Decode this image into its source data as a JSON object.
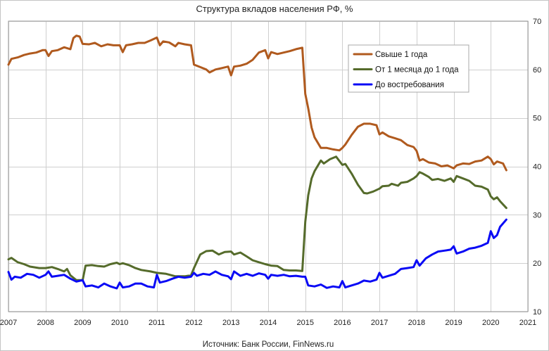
{
  "chart_data": {
    "type": "line",
    "title": "Структура вкладов населения РФ, %",
    "xlabel": "",
    "ylabel": "",
    "xlim": [
      2007,
      2021
    ],
    "ylim": [
      10,
      70
    ],
    "x_ticks": [
      "2007",
      "2008",
      "2009",
      "2010",
      "2011",
      "2012",
      "2013",
      "2014",
      "2015",
      "2016",
      "2017",
      "2018",
      "2019",
      "2020",
      "2021"
    ],
    "y_ticks": [
      "10",
      "20",
      "30",
      "40",
      "50",
      "60",
      "70"
    ],
    "y_axis_side": "right",
    "grid": true,
    "legend_position": "upper right",
    "series": [
      {
        "name": "Свыше 1 года",
        "color": "#b05a1e",
        "points": [
          [
            2007.0,
            61.0
          ],
          [
            2007.08,
            62.2
          ],
          [
            2007.25,
            62.5
          ],
          [
            2007.42,
            63.0
          ],
          [
            2007.58,
            63.3
          ],
          [
            2007.75,
            63.5
          ],
          [
            2007.92,
            64.0
          ],
          [
            2008.0,
            64.0
          ],
          [
            2008.08,
            62.8
          ],
          [
            2008.17,
            63.8
          ],
          [
            2008.33,
            64.0
          ],
          [
            2008.5,
            64.6
          ],
          [
            2008.67,
            64.2
          ],
          [
            2008.75,
            66.5
          ],
          [
            2008.83,
            67.0
          ],
          [
            2008.92,
            66.8
          ],
          [
            2009.0,
            65.3
          ],
          [
            2009.17,
            65.2
          ],
          [
            2009.33,
            65.5
          ],
          [
            2009.5,
            64.8
          ],
          [
            2009.67,
            65.2
          ],
          [
            2009.83,
            65.0
          ],
          [
            2010.0,
            65.0
          ],
          [
            2010.08,
            63.6
          ],
          [
            2010.17,
            65.0
          ],
          [
            2010.33,
            65.2
          ],
          [
            2010.5,
            65.5
          ],
          [
            2010.67,
            65.5
          ],
          [
            2010.83,
            66.0
          ],
          [
            2011.0,
            66.6
          ],
          [
            2011.08,
            65.0
          ],
          [
            2011.17,
            65.8
          ],
          [
            2011.33,
            65.6
          ],
          [
            2011.5,
            64.8
          ],
          [
            2011.58,
            65.5
          ],
          [
            2011.75,
            65.2
          ],
          [
            2011.92,
            65.0
          ],
          [
            2012.0,
            61.0
          ],
          [
            2012.17,
            60.5
          ],
          [
            2012.33,
            60.0
          ],
          [
            2012.42,
            59.4
          ],
          [
            2012.58,
            60.0
          ],
          [
            2012.75,
            60.3
          ],
          [
            2012.92,
            60.6
          ],
          [
            2013.0,
            58.8
          ],
          [
            2013.08,
            60.6
          ],
          [
            2013.25,
            60.8
          ],
          [
            2013.42,
            61.2
          ],
          [
            2013.58,
            62.0
          ],
          [
            2013.75,
            63.5
          ],
          [
            2013.92,
            64.0
          ],
          [
            2014.0,
            62.3
          ],
          [
            2014.08,
            63.6
          ],
          [
            2014.25,
            63.2
          ],
          [
            2014.42,
            63.5
          ],
          [
            2014.58,
            63.8
          ],
          [
            2014.75,
            64.2
          ],
          [
            2014.92,
            64.5
          ],
          [
            2015.0,
            55.0
          ],
          [
            2015.08,
            52.0
          ],
          [
            2015.17,
            48.0
          ],
          [
            2015.25,
            46.0
          ],
          [
            2015.42,
            43.8
          ],
          [
            2015.58,
            43.8
          ],
          [
            2015.75,
            43.5
          ],
          [
            2015.92,
            43.3
          ],
          [
            2016.0,
            43.8
          ],
          [
            2016.08,
            44.5
          ],
          [
            2016.25,
            46.5
          ],
          [
            2016.42,
            48.2
          ],
          [
            2016.58,
            48.8
          ],
          [
            2016.75,
            48.8
          ],
          [
            2016.92,
            48.5
          ],
          [
            2017.0,
            46.6
          ],
          [
            2017.08,
            47.0
          ],
          [
            2017.25,
            46.2
          ],
          [
            2017.42,
            45.8
          ],
          [
            2017.58,
            45.4
          ],
          [
            2017.75,
            44.4
          ],
          [
            2017.92,
            44.0
          ],
          [
            2018.0,
            43.2
          ],
          [
            2018.08,
            41.2
          ],
          [
            2018.17,
            41.5
          ],
          [
            2018.33,
            40.8
          ],
          [
            2018.5,
            40.6
          ],
          [
            2018.67,
            40.0
          ],
          [
            2018.83,
            40.2
          ],
          [
            2019.0,
            39.6
          ],
          [
            2019.08,
            40.2
          ],
          [
            2019.25,
            40.6
          ],
          [
            2019.42,
            40.5
          ],
          [
            2019.58,
            41.0
          ],
          [
            2019.75,
            41.2
          ],
          [
            2019.92,
            42.0
          ],
          [
            2020.0,
            41.5
          ],
          [
            2020.08,
            40.4
          ],
          [
            2020.17,
            41.0
          ],
          [
            2020.25,
            40.8
          ],
          [
            2020.33,
            40.6
          ],
          [
            2020.42,
            39.2
          ]
        ]
      },
      {
        "name": "От 1 месяца до 1 года",
        "color": "#556b2b",
        "points": [
          [
            2007.0,
            20.8
          ],
          [
            2007.08,
            21.1
          ],
          [
            2007.25,
            20.2
          ],
          [
            2007.42,
            19.8
          ],
          [
            2007.58,
            19.3
          ],
          [
            2007.83,
            19.0
          ],
          [
            2008.0,
            19.0
          ],
          [
            2008.17,
            19.2
          ],
          [
            2008.33,
            18.8
          ],
          [
            2008.5,
            18.3
          ],
          [
            2008.58,
            18.8
          ],
          [
            2008.67,
            17.5
          ],
          [
            2008.83,
            16.5
          ],
          [
            2009.0,
            16.5
          ],
          [
            2009.08,
            19.5
          ],
          [
            2009.25,
            19.6
          ],
          [
            2009.42,
            19.4
          ],
          [
            2009.58,
            19.3
          ],
          [
            2009.75,
            19.8
          ],
          [
            2009.92,
            20.1
          ],
          [
            2010.0,
            19.8
          ],
          [
            2010.08,
            20.0
          ],
          [
            2010.25,
            19.6
          ],
          [
            2010.42,
            19.0
          ],
          [
            2010.58,
            18.6
          ],
          [
            2010.83,
            18.3
          ],
          [
            2011.0,
            18.0
          ],
          [
            2011.25,
            17.8
          ],
          [
            2011.5,
            17.3
          ],
          [
            2011.75,
            17.3
          ],
          [
            2011.92,
            17.5
          ],
          [
            2012.0,
            19.0
          ],
          [
            2012.17,
            21.8
          ],
          [
            2012.33,
            22.5
          ],
          [
            2012.5,
            22.6
          ],
          [
            2012.67,
            21.8
          ],
          [
            2012.83,
            22.3
          ],
          [
            2013.0,
            22.4
          ],
          [
            2013.08,
            21.8
          ],
          [
            2013.25,
            22.2
          ],
          [
            2013.42,
            21.4
          ],
          [
            2013.58,
            20.6
          ],
          [
            2013.75,
            20.2
          ],
          [
            2013.92,
            19.8
          ],
          [
            2014.08,
            19.5
          ],
          [
            2014.25,
            19.4
          ],
          [
            2014.42,
            18.6
          ],
          [
            2014.58,
            18.5
          ],
          [
            2014.75,
            18.5
          ],
          [
            2014.92,
            18.4
          ],
          [
            2015.0,
            28.5
          ],
          [
            2015.08,
            34.0
          ],
          [
            2015.17,
            37.5
          ],
          [
            2015.25,
            39.0
          ],
          [
            2015.42,
            41.2
          ],
          [
            2015.5,
            40.6
          ],
          [
            2015.67,
            41.5
          ],
          [
            2015.83,
            42.0
          ],
          [
            2016.0,
            40.3
          ],
          [
            2016.08,
            40.5
          ],
          [
            2016.25,
            38.5
          ],
          [
            2016.42,
            36.2
          ],
          [
            2016.58,
            34.5
          ],
          [
            2016.67,
            34.4
          ],
          [
            2016.83,
            34.8
          ],
          [
            2017.0,
            35.4
          ],
          [
            2017.08,
            35.9
          ],
          [
            2017.25,
            36.0
          ],
          [
            2017.33,
            36.4
          ],
          [
            2017.5,
            36.0
          ],
          [
            2017.58,
            36.6
          ],
          [
            2017.75,
            36.8
          ],
          [
            2017.92,
            37.5
          ],
          [
            2018.0,
            38.0
          ],
          [
            2018.08,
            38.8
          ],
          [
            2018.17,
            38.5
          ],
          [
            2018.33,
            37.8
          ],
          [
            2018.42,
            37.2
          ],
          [
            2018.58,
            37.4
          ],
          [
            2018.75,
            37.0
          ],
          [
            2018.92,
            37.5
          ],
          [
            2019.0,
            36.8
          ],
          [
            2019.08,
            38.0
          ],
          [
            2019.25,
            37.5
          ],
          [
            2019.42,
            37.0
          ],
          [
            2019.58,
            36.0
          ],
          [
            2019.75,
            35.8
          ],
          [
            2019.92,
            35.2
          ],
          [
            2020.0,
            33.8
          ],
          [
            2020.08,
            33.2
          ],
          [
            2020.17,
            33.6
          ],
          [
            2020.25,
            32.8
          ],
          [
            2020.42,
            31.4
          ]
        ]
      },
      {
        "name": "До востребования",
        "color": "#0a0af5",
        "points": [
          [
            2007.0,
            18.2
          ],
          [
            2007.08,
            16.6
          ],
          [
            2007.17,
            17.2
          ],
          [
            2007.33,
            17.0
          ],
          [
            2007.5,
            17.8
          ],
          [
            2007.67,
            17.6
          ],
          [
            2007.83,
            17.0
          ],
          [
            2008.0,
            17.6
          ],
          [
            2008.08,
            18.3
          ],
          [
            2008.17,
            17.2
          ],
          [
            2008.33,
            17.4
          ],
          [
            2008.5,
            17.6
          ],
          [
            2008.67,
            16.8
          ],
          [
            2008.83,
            16.2
          ],
          [
            2009.0,
            16.5
          ],
          [
            2009.08,
            15.2
          ],
          [
            2009.25,
            15.4
          ],
          [
            2009.42,
            15.0
          ],
          [
            2009.58,
            15.8
          ],
          [
            2009.75,
            15.2
          ],
          [
            2009.92,
            14.8
          ],
          [
            2010.0,
            16.0
          ],
          [
            2010.08,
            15.0
          ],
          [
            2010.25,
            15.2
          ],
          [
            2010.42,
            15.8
          ],
          [
            2010.58,
            15.8
          ],
          [
            2010.75,
            15.2
          ],
          [
            2010.92,
            15.0
          ],
          [
            2011.0,
            17.6
          ],
          [
            2011.08,
            16.0
          ],
          [
            2011.25,
            16.3
          ],
          [
            2011.42,
            16.8
          ],
          [
            2011.58,
            17.2
          ],
          [
            2011.75,
            17.0
          ],
          [
            2011.92,
            17.2
          ],
          [
            2012.0,
            18.0
          ],
          [
            2012.08,
            17.4
          ],
          [
            2012.25,
            17.8
          ],
          [
            2012.42,
            17.6
          ],
          [
            2012.58,
            18.3
          ],
          [
            2012.75,
            17.6
          ],
          [
            2012.92,
            17.3
          ],
          [
            2013.0,
            16.7
          ],
          [
            2013.08,
            18.3
          ],
          [
            2013.25,
            17.4
          ],
          [
            2013.42,
            17.8
          ],
          [
            2013.58,
            17.4
          ],
          [
            2013.75,
            17.9
          ],
          [
            2013.92,
            17.6
          ],
          [
            2014.0,
            16.8
          ],
          [
            2014.08,
            17.6
          ],
          [
            2014.25,
            17.4
          ],
          [
            2014.42,
            17.6
          ],
          [
            2014.58,
            17.3
          ],
          [
            2014.75,
            17.4
          ],
          [
            2014.92,
            17.2
          ],
          [
            2015.0,
            17.2
          ],
          [
            2015.08,
            15.4
          ],
          [
            2015.25,
            15.2
          ],
          [
            2015.42,
            15.6
          ],
          [
            2015.58,
            14.9
          ],
          [
            2015.75,
            15.2
          ],
          [
            2015.92,
            15.0
          ],
          [
            2016.0,
            16.3
          ],
          [
            2016.08,
            15.0
          ],
          [
            2016.25,
            15.4
          ],
          [
            2016.42,
            15.8
          ],
          [
            2016.58,
            16.4
          ],
          [
            2016.75,
            16.2
          ],
          [
            2016.92,
            16.6
          ],
          [
            2017.0,
            18.0
          ],
          [
            2017.08,
            17.0
          ],
          [
            2017.25,
            17.4
          ],
          [
            2017.42,
            17.8
          ],
          [
            2017.58,
            18.8
          ],
          [
            2017.75,
            19.0
          ],
          [
            2017.92,
            19.2
          ],
          [
            2018.0,
            20.6
          ],
          [
            2018.08,
            19.5
          ],
          [
            2018.25,
            21.0
          ],
          [
            2018.42,
            21.8
          ],
          [
            2018.58,
            22.4
          ],
          [
            2018.75,
            22.6
          ],
          [
            2018.92,
            22.8
          ],
          [
            2019.0,
            23.5
          ],
          [
            2019.08,
            22.0
          ],
          [
            2019.25,
            22.4
          ],
          [
            2019.42,
            23.0
          ],
          [
            2019.58,
            23.2
          ],
          [
            2019.75,
            23.6
          ],
          [
            2019.92,
            24.2
          ],
          [
            2020.0,
            26.6
          ],
          [
            2020.08,
            25.2
          ],
          [
            2020.17,
            25.8
          ],
          [
            2020.25,
            27.5
          ],
          [
            2020.42,
            29.0
          ]
        ]
      }
    ]
  },
  "source": "Источник: Банк России, FinNews.ru"
}
